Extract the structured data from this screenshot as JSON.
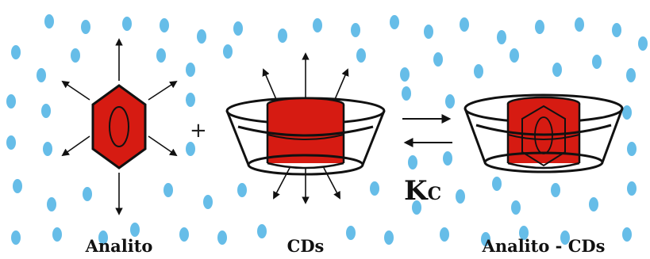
{
  "labels": {
    "analyte": "Analito",
    "host": "CDs",
    "complex": "Analito - CDs"
  },
  "operator_plus": "+",
  "equilibrium_constant": {
    "main": "K",
    "subscript": "C"
  },
  "colors": {
    "water_dot": "#66bde8",
    "analyte_fill": "#d61b12",
    "outline": "#111111"
  },
  "icons": {
    "analyte": "hexagon-molecule-icon",
    "host": "cyclodextrin-cup-icon",
    "complex": "inclusion-complex-icon",
    "equilibrium": "equilibrium-arrows-icon"
  }
}
